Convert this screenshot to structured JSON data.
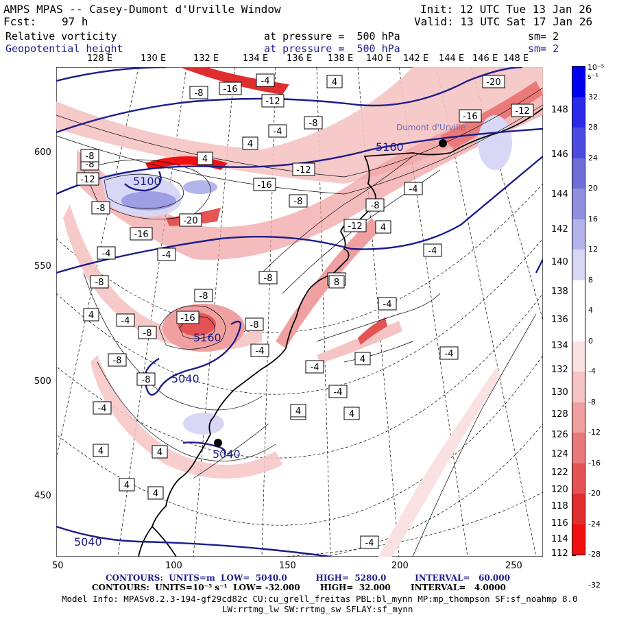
{
  "header": {
    "title": "AMPS MPAS -- Casey-Dumont d'Urville Window",
    "fcst_label": "Fcst:",
    "fcst_value": "97 h",
    "init": "Init: 12 UTC Tue 13 Jan 26",
    "valid": "Valid: 13 UTC Sat 17 Jan 26",
    "field1_name": "Relative vorticity",
    "field1_level": "at pressure =  500 hPa",
    "field1_sm": "sm= 2",
    "field2_name": "Geopotential height",
    "field2_level": "at pressure =  500 hPa",
    "field2_sm": "sm= 2"
  },
  "top_lon_labels": [
    "128 E",
    "130 E",
    "132 E",
    "134 E",
    "136 E",
    "138 E",
    "140 E",
    "142 E",
    "144 E",
    "146 E",
    "148 E"
  ],
  "right_lon_labels": [
    "148 E",
    "146 E",
    "144 E",
    "142 E",
    "140 E",
    "138 E",
    "136 E",
    "134 E",
    "132 E",
    "130 E",
    "128 E",
    "126 E",
    "124 E",
    "122 E",
    "120 E",
    "118 E",
    "116 E",
    "114 E",
    "112 E"
  ],
  "left_ticks": [
    "600",
    "550",
    "500",
    "450"
  ],
  "bottom_ticks": [
    "50",
    "100",
    "150",
    "200",
    "250"
  ],
  "colorbar": {
    "unit": "10⁻⁵ s⁻¹",
    "labels": [
      "32",
      "28",
      "24",
      "20",
      "16",
      "12",
      "8",
      "4",
      "0",
      "-4",
      "-8",
      "-12",
      "-16",
      "-20",
      "-24",
      "-28",
      "-32"
    ],
    "colors": [
      "#0000f0",
      "#2a2ae8",
      "#4c4ce0",
      "#6e6ed8",
      "#9090e0",
      "#b4b4ec",
      "#d8d8f6",
      "#ffffff",
      "#ffffff",
      "#fbe2e2",
      "#f6c4c4",
      "#f0a0a0",
      "#ea7a7a",
      "#e45454",
      "#e02e2e",
      "#f01010"
    ]
  },
  "map_labels": {
    "height_values": [
      "5040",
      "5160",
      "5160",
      "5100",
      "5040",
      "5040"
    ],
    "vort_values": [
      "-8",
      "-16",
      "-12",
      "-4",
      "-8",
      "-20",
      "-16",
      "-12",
      "4",
      "-4",
      "-8",
      "4",
      "-12",
      "-8",
      "-16",
      "-8",
      "-20",
      "-8",
      "-16",
      "-12",
      "-4",
      "4",
      "-4",
      "-8",
      "-8",
      "-12",
      "-4",
      "-8",
      "4",
      "-4",
      "-8",
      "8",
      "-4",
      "-4",
      "-8",
      "-16",
      "-8",
      "-8",
      "-4",
      "-8",
      "4",
      "-4",
      "-4",
      "4",
      "-4",
      "-8",
      "4",
      "-4",
      "4",
      "4",
      "4",
      "4",
      "4",
      "4",
      "-4"
    ],
    "station1": "Dumont d'Urville"
  },
  "footer": {
    "line1": "CONTOURS:  UNITS=m  LOW=  5040.0          HIGH=  5280.0          INTERVAL=   60.000",
    "line2": "CONTOURS:  UNITS=10⁻⁵ s⁻¹  LOW= -32.000       HIGH=  32.000       INTERVAL=   4.0000",
    "line3": "Model Info: MPASv8.2.3-194-gf29cd82c CU:cu_grell_freitas PBL:bl_mynn MP:mp_thompson SF:sf_noahmp 8.0",
    "line4": "LW:rrtmg_lw SW:rrtmg_sw SFLAY:sf_mynn"
  },
  "colors": {
    "height_contour": "#1c1c8c",
    "coast": "#000000",
    "positive_vort": "#e03030",
    "negative_vort": "#5050d0"
  }
}
